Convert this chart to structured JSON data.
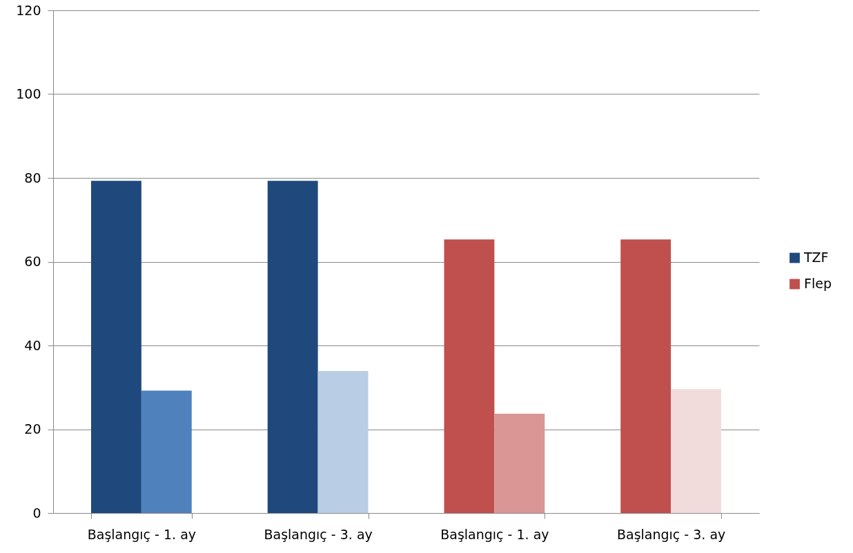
{
  "chart_data": {
    "type": "bar",
    "categories": [
      "Başlangıç  - 1. ay",
      "Başlangıç - 3. ay",
      "Başlangıç  - 1. ay",
      "Başlangıç  - 3. ay"
    ],
    "series": [
      {
        "name": "TZF",
        "color": "#1f497d",
        "values": [
          79.3,
          79.3,
          null,
          null
        ]
      },
      {
        "name": "Flep",
        "color": "#c0504d",
        "values": [
          null,
          null,
          65.3,
          65.3
        ]
      },
      {
        "colors": [
          "#4f81bd",
          "#b9cde5",
          "#d99694",
          "#f2dcdb"
        ],
        "values": [
          29.2,
          33.9,
          23.7,
          29.6
        ]
      }
    ],
    "ylim": [
      0,
      120
    ],
    "yticks": [
      0,
      20,
      40,
      60,
      80,
      100,
      120
    ],
    "grid": "y",
    "legend": "right"
  }
}
